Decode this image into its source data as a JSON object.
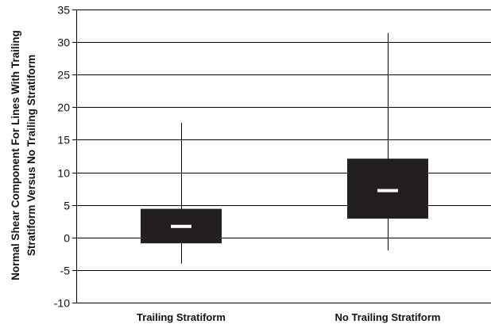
{
  "chart_data": {
    "type": "box",
    "title": "",
    "xlabel": "",
    "ylabel_lines": [
      "Normal Shear Component For Lines With Trailing",
      "Stratiform Versus No Trailing Stratiform"
    ],
    "ylim": [
      -10,
      35
    ],
    "yticks": [
      -10,
      -5,
      0,
      5,
      10,
      15,
      20,
      25,
      30,
      35
    ],
    "grid": true,
    "categories": [
      "Trailing Stratiform",
      "No Trailing Stratiform"
    ],
    "boxes": [
      {
        "category": "Trailing Stratiform",
        "min": -4.0,
        "q1": -0.9,
        "median": 1.7,
        "q3": 4.4,
        "max": 17.6
      },
      {
        "category": "No Trailing Stratiform",
        "min": -2.0,
        "q1": 2.9,
        "median": 7.2,
        "q3": 12.1,
        "max": 31.4
      }
    ],
    "colors": {
      "box": "#231f20",
      "median": "#ffffff",
      "grid": "#000000"
    }
  }
}
